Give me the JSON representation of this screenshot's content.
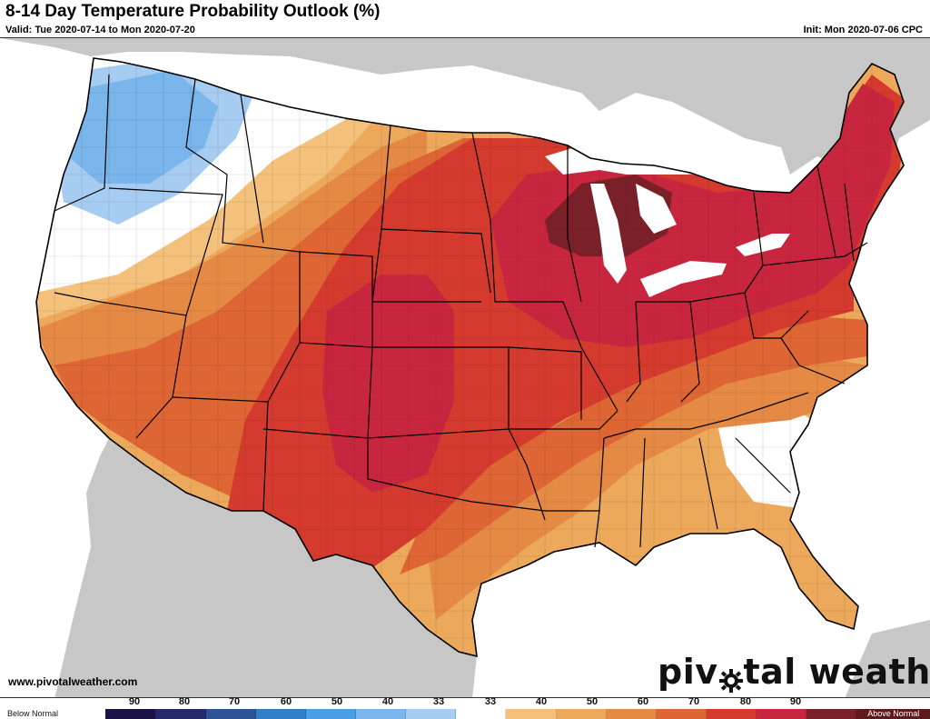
{
  "header": {
    "title": "8-14 Day Temperature Probability Outlook (%)",
    "valid": "Valid: Tue 2020-07-14 to Mon 2020-07-20",
    "init": "Init: Mon 2020-07-06 CPC"
  },
  "footer": {
    "website": "www.pivotalweather.com",
    "logo_left": "piv",
    "logo_right": "tal weather"
  },
  "legend": {
    "below_label": "Below Normal",
    "above_label": "Above Normal",
    "ticks": [
      "90",
      "80",
      "70",
      "60",
      "50",
      "40",
      "33",
      "33",
      "40",
      "50",
      "60",
      "70",
      "80",
      "90"
    ],
    "colors": {
      "below_90": "#1b1346",
      "below_80": "#262a6b",
      "below_70": "#2c5395",
      "below_60": "#2f7ec6",
      "below_50": "#4a9ee3",
      "below_40": "#7ab6ec",
      "below_33": "#a6ccf1",
      "near_normal": "#ffffff",
      "above_33": "#f3c17b",
      "above_40": "#eca95c",
      "above_50": "#e58a44",
      "above_60": "#de6534",
      "above_70": "#d43a2e",
      "above_80": "#c8263f",
      "above_90": "#7a2029",
      "above_max": "#5c1a1d"
    }
  },
  "map": {
    "ocean_color": "#ffffff",
    "land_color": "#c7c7c7",
    "water_color": "#ffffff"
  }
}
